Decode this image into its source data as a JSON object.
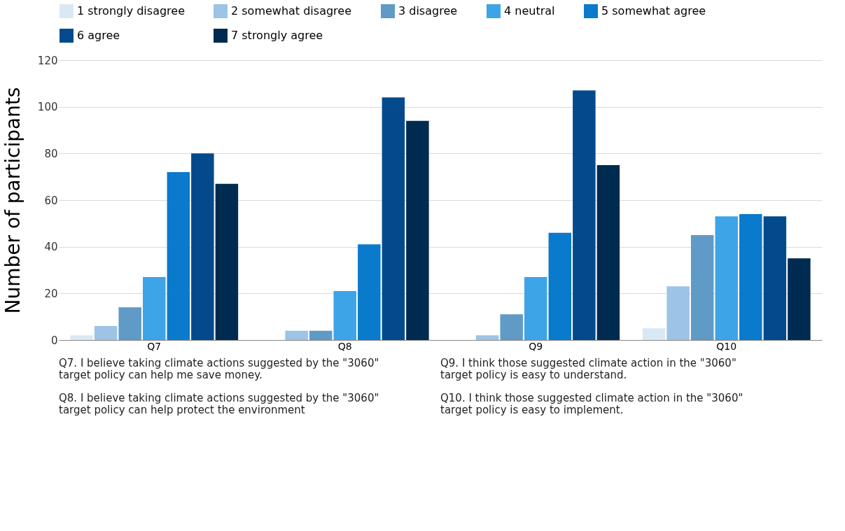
{
  "chart_data": {
    "type": "bar",
    "ylabel": "Number of participants",
    "categories": [
      "Q7",
      "Q8",
      "Q9",
      "Q10"
    ],
    "series": [
      {
        "name": "1 strongly disagree",
        "color": "#dae8f3",
        "values": [
          2,
          0,
          0,
          5
        ]
      },
      {
        "name": "2 somewhat disagree",
        "color": "#9dc3e6",
        "values": [
          6,
          4,
          2,
          23
        ]
      },
      {
        "name": "3 disagree",
        "color": "#5f9bc6",
        "values": [
          14,
          4,
          11,
          45
        ]
      },
      {
        "name": "4 neutral",
        "color": "#3ea4e8",
        "values": [
          27,
          21,
          27,
          53
        ]
      },
      {
        "name": "5 somewhat agree",
        "color": "#0a7acc",
        "values": [
          72,
          41,
          46,
          54
        ]
      },
      {
        "name": "6 agree",
        "color": "#034a8c",
        "values": [
          80,
          104,
          107,
          53
        ]
      },
      {
        "name": "7 strongly agree",
        "color": "#002b50",
        "values": [
          67,
          94,
          75,
          35
        ]
      }
    ],
    "ylim": [
      0,
      120
    ],
    "yticks": [
      0,
      20,
      40,
      60,
      80,
      100,
      120
    ],
    "grid": "y",
    "legend": "top",
    "annotations": [
      "Q7. I believe taking climate actions suggested by the \"3060\"\ntarget policy can help me save money.",
      "Q8. I believe taking climate actions suggested by the \"3060\"\ntarget policy can help protect the environment",
      "Q9. I think those suggested climate action in the \"3060\"\ntarget policy is easy to understand.",
      "Q10. I think those suggested climate action in the \"3060\"\ntarget policy is easy to implement."
    ]
  }
}
